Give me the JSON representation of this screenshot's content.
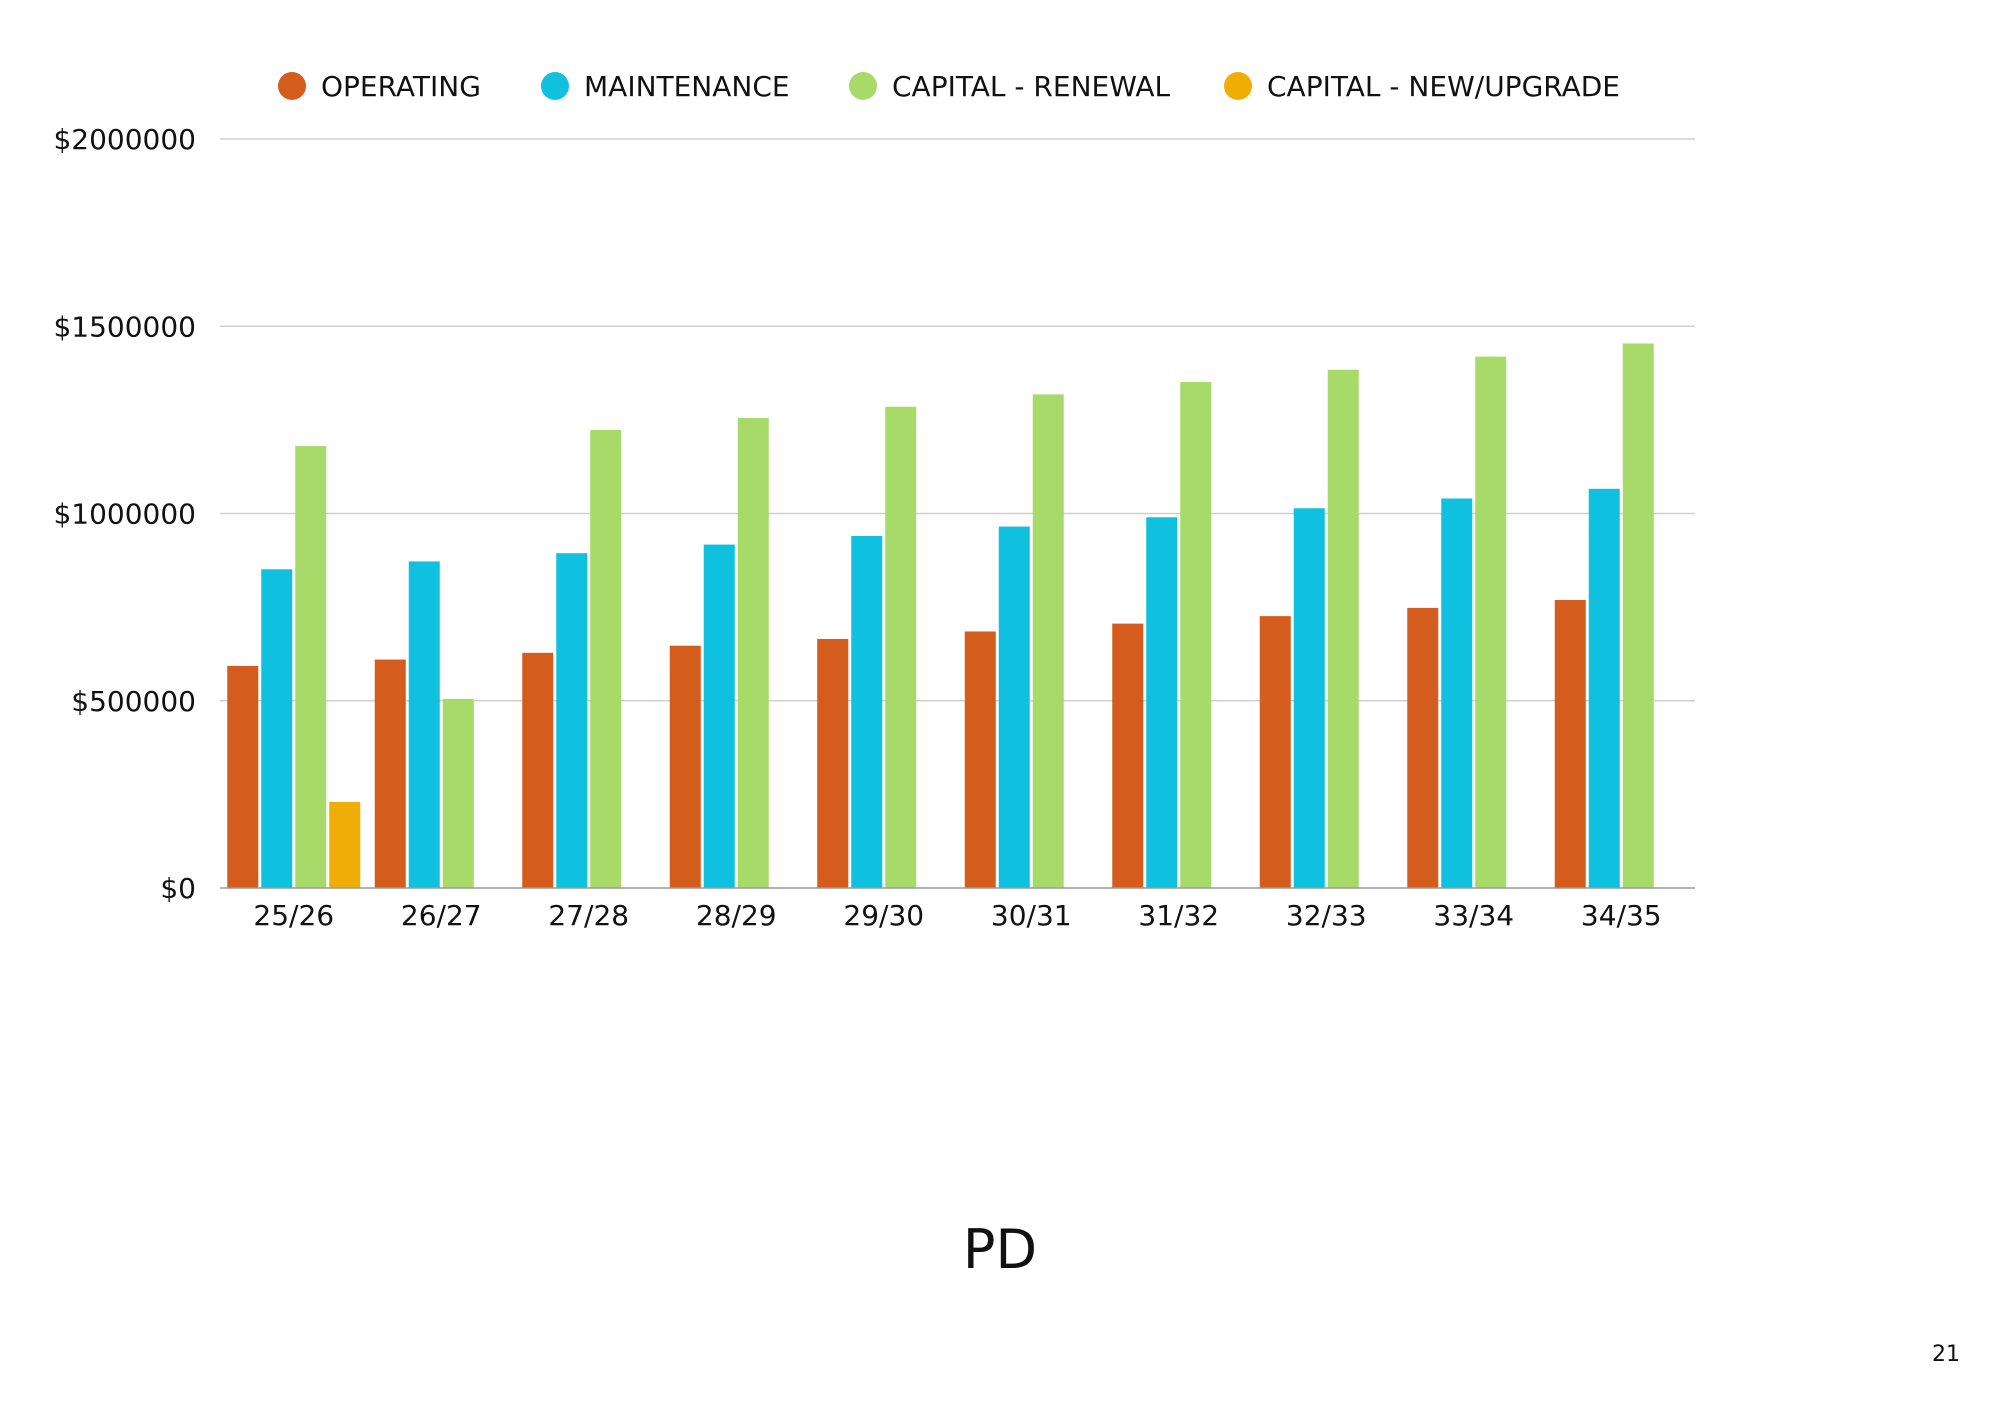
{
  "page": {
    "title": "PD",
    "page_number": "21"
  },
  "chart_data": {
    "type": "bar",
    "title": "",
    "xlabel": "",
    "ylabel": "",
    "categories": [
      "25/26",
      "26/27",
      "27/28",
      "28/29",
      "29/30",
      "30/31",
      "31/32",
      "32/33",
      "33/34",
      "34/35"
    ],
    "series": [
      {
        "name": "OPERATING",
        "color": "#d45d1e",
        "values": [
          593000,
          610000,
          628000,
          647000,
          665000,
          685000,
          706000,
          726000,
          748000,
          769000
        ]
      },
      {
        "name": "MAINTENANCE",
        "color": "#0fc0df",
        "values": [
          851000,
          872000,
          894000,
          917000,
          940000,
          965000,
          990000,
          1014000,
          1040000,
          1066000
        ]
      },
      {
        "name": "CAPITAL - RENEWAL",
        "color": "#a7da69",
        "values": [
          1180000,
          505000,
          1223000,
          1255000,
          1285000,
          1318000,
          1351000,
          1384000,
          1419000,
          1454000
        ]
      },
      {
        "name": "CAPITAL - NEW/UPGRADE",
        "color": "#f0ad05",
        "values": [
          230000,
          0,
          0,
          0,
          0,
          0,
          0,
          0,
          0,
          0
        ]
      }
    ],
    "ylim": [
      0,
      2000000
    ],
    "y_ticks": [
      0,
      500000,
      1000000,
      1500000,
      2000000
    ],
    "y_tick_labels": [
      "$0",
      "$500000",
      "$1000000",
      "$1500000",
      "$2000000"
    ],
    "grid": true,
    "legend_position": "top-center",
    "colors": {
      "grid": "#d0d0d0",
      "axis": "#9a9a9a"
    }
  }
}
